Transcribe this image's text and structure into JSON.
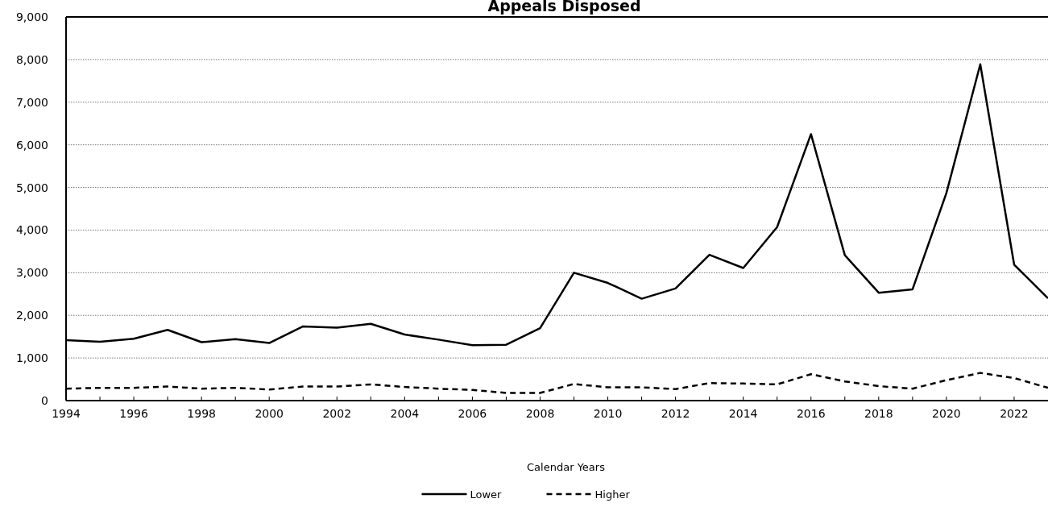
{
  "chart_data": {
    "type": "line",
    "title": "Appeals Disposed",
    "xlabel": "Calendar Years",
    "x": [
      1994,
      1995,
      1996,
      1997,
      1998,
      1999,
      2000,
      2001,
      2002,
      2003,
      2004,
      2005,
      2006,
      2007,
      2008,
      2009,
      2010,
      2011,
      2012,
      2013,
      2014,
      2015,
      2016,
      2017,
      2018,
      2019,
      2020,
      2021,
      2022,
      2023
    ],
    "series": [
      {
        "name": "Lower",
        "color": "#000000",
        "line_style": "solid",
        "values": [
          1420,
          1380,
          1450,
          1660,
          1370,
          1440,
          1350,
          1740,
          1710,
          1800,
          1550,
          1430,
          1300,
          1310,
          1700,
          3000,
          2760,
          2390,
          2630,
          3420,
          3110,
          4070,
          6250,
          3410,
          2530,
          2610,
          4870,
          7890,
          3190,
          2400
        ]
      },
      {
        "name": "Higher",
        "color": "#000000",
        "line_style": "dashed",
        "values": [
          280,
          300,
          300,
          330,
          280,
          300,
          260,
          330,
          330,
          380,
          320,
          280,
          250,
          180,
          180,
          390,
          310,
          310,
          270,
          410,
          400,
          380,
          620,
          450,
          340,
          280,
          480,
          650,
          530,
          300
        ]
      }
    ],
    "xlim": [
      1994,
      2023
    ],
    "xticks": [
      1994,
      {
        "value": 1995,
        "label": null
      },
      1996,
      {
        "value": 1997,
        "label": null
      },
      1998,
      {
        "value": 1999,
        "label": null
      },
      2000,
      {
        "value": 2001,
        "label": null
      },
      2002,
      {
        "value": 2003,
        "label": null
      },
      2004,
      {
        "value": 2005,
        "label": null
      },
      2006,
      {
        "value": 2007,
        "label": null
      },
      2008,
      {
        "value": 2009,
        "label": null
      },
      2010,
      {
        "value": 2011,
        "label": null
      },
      2012,
      {
        "value": 2013,
        "label": null
      },
      2014,
      {
        "value": 2015,
        "label": null
      },
      2016,
      {
        "value": 2017,
        "label": null
      },
      2018,
      {
        "value": 2019,
        "label": null
      },
      2020,
      {
        "value": 2021,
        "label": null
      },
      2022
    ],
    "ylim": [
      0,
      9000
    ],
    "yticks": [
      {
        "value": 0,
        "label": "0"
      },
      {
        "value": 1000,
        "label": "1,000"
      },
      {
        "value": 2000,
        "label": "2,000"
      },
      {
        "value": 3000,
        "label": "3,000"
      },
      {
        "value": 4000,
        "label": "4,000"
      },
      {
        "value": 5000,
        "label": "5,000"
      },
      {
        "value": 6000,
        "label": "6,000"
      },
      {
        "value": 7000,
        "label": "7,000"
      },
      {
        "value": 8000,
        "label": "8,000"
      },
      {
        "value": 9000,
        "label": "9,000"
      }
    ],
    "grid": "y",
    "legend": "bottom",
    "marker": "none"
  }
}
